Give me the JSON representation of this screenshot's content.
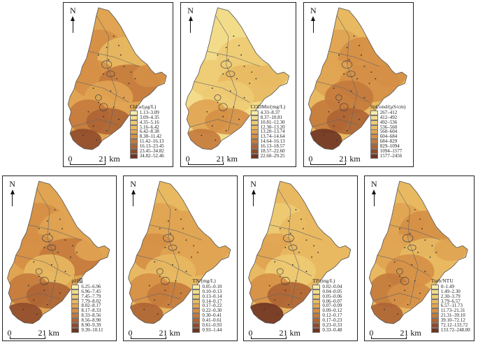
{
  "common": {
    "north_label": "N",
    "scale_zero": "0",
    "scale_distance": "21 km"
  },
  "panels": [
    {
      "id": "chla",
      "legend_title": "Chl.a/(μg/L)",
      "classes": [
        "1.13–3.09",
        "3.09–4.35",
        "4.35–5.16",
        "5.16–6.42",
        "6.42–8.38",
        "8.38–11.42",
        "11.42–16.13",
        "16.13–23.45",
        "23.45–34.82",
        "34.82–52.46"
      ]
    },
    {
      "id": "codmn",
      "legend_title": "CODMn/(mg/L)",
      "classes": [
        "4.33–8.37",
        "8.37–10.81",
        "10.81–12.30",
        "12.30–13.20",
        "13.20–13.74",
        "13.74–14.64",
        "14.64–16.13",
        "16.13–18.57",
        "18.57–22.60",
        "22.60–29.25"
      ]
    },
    {
      "id": "spcond",
      "legend_title": "SpCond/(μS/cm)",
      "classes": [
        "267–412",
        "412–492",
        "492–536",
        "536–560",
        "560–604",
        "604–684",
        "684–829",
        "829–1094",
        "1094–1577",
        "1577–2456"
      ]
    },
    {
      "id": "ph",
      "legend_title": "pH值",
      "classes": [
        "6.25–6.96",
        "6.96–7.45",
        "7.45–7.79",
        "7.79–8.02",
        "8.02–8.17",
        "8.17–8.33",
        "8.33–8.56",
        "8.56–8.90",
        "8.90–9.39",
        "9.39–10.11"
      ]
    },
    {
      "id": "tn",
      "legend_title": "TN/(mg/L)",
      "classes": [
        "0.05–0.10",
        "0.10–0.13",
        "0.13–0.14",
        "0.14–0.17",
        "0.17–0.22",
        "0.22–0.30",
        "0.30–0.41",
        "0.41–0.61",
        "0.61–0.93",
        "0.93–1.44"
      ]
    },
    {
      "id": "tp",
      "legend_title": "TP/(mg/L)",
      "classes": [
        "0.02–0.04",
        "0.04–0.05",
        "0.05–0.06",
        "0.06–0.07",
        "0.07–0.09",
        "0.09–0.12",
        "0.12–0.17",
        "0.17–0.23",
        "0.23–0.33",
        "0.33–0.48"
      ]
    },
    {
      "id": "turb",
      "legend_title": "Turb/NTU",
      "classes": [
        "0–1.49",
        "1.49–2.30",
        "2.30–3.79",
        "3.79–6.57",
        "6.57–11.73",
        "11.73–21.31",
        "21.31–39.10",
        "39.10–72.12",
        "72.12–133.72",
        "133.72–248.00"
      ]
    }
  ],
  "palette": [
    "#f6ecaa",
    "#f2dc8a",
    "#edcb73",
    "#e8b962",
    "#e0a452",
    "#d58f46",
    "#c47a3c",
    "#ad6434",
    "#8f4b2b",
    "#6e3422"
  ]
}
